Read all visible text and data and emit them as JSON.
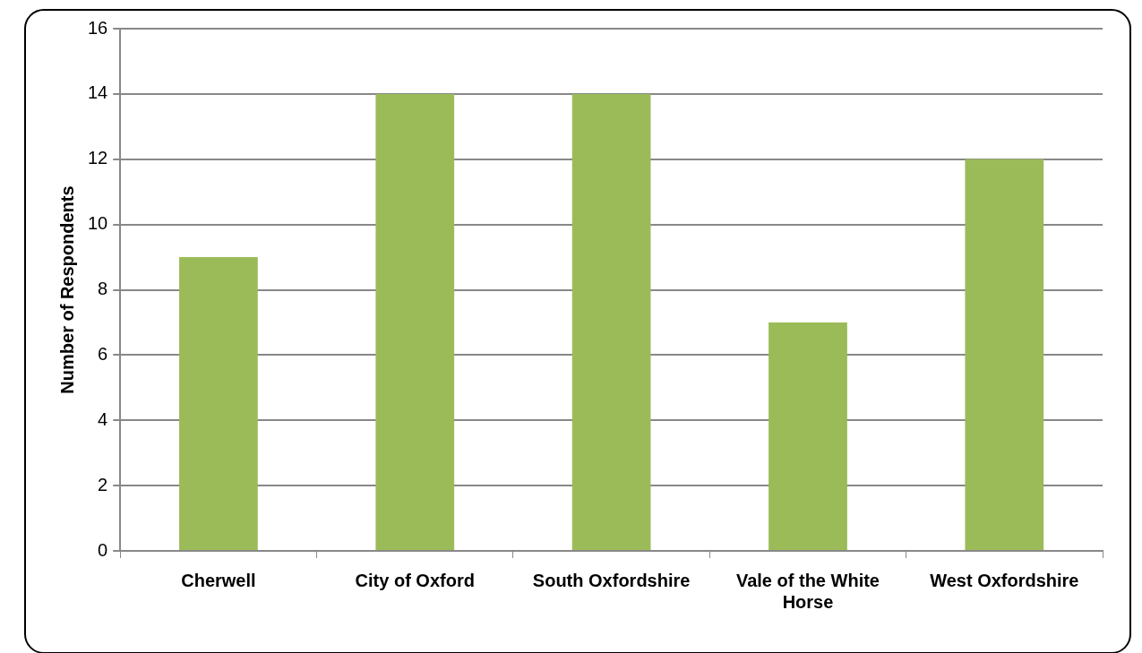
{
  "chart_data": {
    "type": "bar",
    "ylabel": "Number of Respondents",
    "categories": [
      "Cherwell",
      "City of Oxford",
      "South Oxfordshire",
      "Vale of the White Horse",
      "West Oxfordshire"
    ],
    "values": [
      9,
      14,
      14,
      7,
      12
    ],
    "color": "#9bbb59",
    "ylim": [
      0,
      16
    ],
    "yticks": [
      0,
      2,
      4,
      6,
      8,
      10,
      12,
      14,
      16
    ],
    "grid": "y",
    "legend": false
  }
}
